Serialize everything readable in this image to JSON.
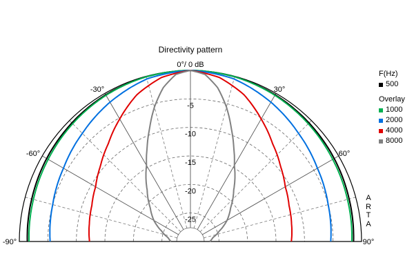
{
  "chart_data": {
    "type": "polar-line",
    "title": "Directivity pattern",
    "angle_range": [
      -90,
      90
    ],
    "angle_ticks": [
      -90,
      -60,
      -30,
      0,
      30,
      60,
      90
    ],
    "angle_tick_labels": [
      "-90°",
      "-60°",
      "-30°",
      "0°/ 0 dB",
      "30°",
      "60°",
      "90°"
    ],
    "radial_range_db": [
      -30,
      0
    ],
    "radial_tick_labels": [
      "-5",
      "-10",
      "-15",
      "-20",
      "-25"
    ],
    "radial_ticks_db": [
      -5,
      -10,
      -15,
      -20,
      -25
    ],
    "grid": true,
    "legend": {
      "position": "right",
      "frequency_header": "F(Hz)",
      "overlay_header": "Overlay"
    },
    "series": [
      {
        "name": "500",
        "color": "#000000",
        "angles": [
          0,
          15,
          30,
          45,
          60,
          75,
          90
        ],
        "values_db": [
          0,
          -0.1,
          -0.3,
          -0.6,
          -0.9,
          -1.2,
          -1.4
        ]
      },
      {
        "name": "1000",
        "color": "#00b050",
        "angles": [
          0,
          15,
          30,
          45,
          60,
          75,
          90
        ],
        "values_db": [
          0,
          -0.1,
          -0.4,
          -0.8,
          -1.2,
          -1.5,
          -1.7
        ]
      },
      {
        "name": "2000",
        "color": "#0070e0",
        "angles": [
          0,
          15,
          30,
          45,
          60,
          75,
          90
        ],
        "values_db": [
          0,
          -0.5,
          -1.8,
          -3.2,
          -4.3,
          -5.0,
          -5.4
        ]
      },
      {
        "name": "4000",
        "color": "#e00000",
        "angles": [
          0,
          10,
          20,
          30,
          40,
          50,
          60,
          70,
          80,
          90
        ],
        "values_db": [
          0,
          -0.8,
          -2.6,
          -5.2,
          -7.6,
          -9.4,
          -10.8,
          -11.6,
          -12.0,
          -12.3
        ]
      },
      {
        "name": "8000",
        "color": "#808080",
        "angles": [
          0,
          5,
          10,
          15,
          20,
          25,
          30,
          40,
          50,
          60,
          70,
          80,
          90
        ],
        "values_db": [
          0,
          -0.6,
          -2.6,
          -5.6,
          -9.0,
          -12.0,
          -14.6,
          -18.2,
          -20.8,
          -22.6,
          -24.6,
          -26.0,
          -26.6
        ]
      }
    ]
  },
  "side_label": [
    "A",
    "R",
    "T",
    "A"
  ]
}
